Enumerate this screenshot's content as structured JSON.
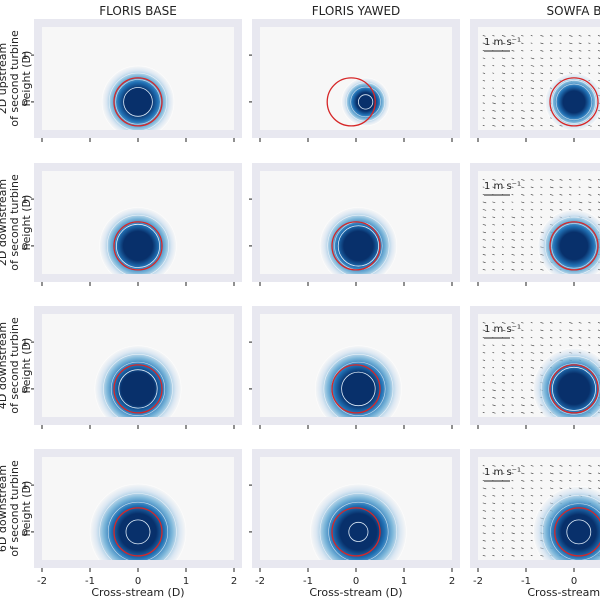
{
  "chart_data": {
    "type": "heatmap",
    "column_titles": [
      "FLORIS BASE",
      "FLORIS YAWED",
      "SOWFA B"
    ],
    "row_labels": [
      [
        "2D upstream",
        "of second turbine",
        "height (D)"
      ],
      [
        "2D downstream",
        "of second turbine",
        "height (D)"
      ],
      [
        "4D downstream",
        "of second turbine",
        "height (D)"
      ],
      [
        "6D downstream",
        "of second turbine",
        "height (D)"
      ]
    ],
    "xlabel": "Cross-stream (D)",
    "x_ticks": [
      "-2",
      "-1",
      "0",
      "1",
      "2"
    ],
    "y_ticks": [
      "0",
      "1"
    ],
    "xlim": [
      -2,
      2
    ],
    "ylim": [
      -0.6,
      1.6
    ],
    "quiver_key": "1 m s⁻¹",
    "colors": {
      "wake_core": "#08306b",
      "wake_edge": "#c6dbef",
      "rotor_outline": "#d62728",
      "panel_frame": "#e8e8f0",
      "panel_bg": "#f7f7f7"
    },
    "wake": {
      "base": [
        {
          "center_x": 0.0,
          "radius": 0.75,
          "core_radius": 0.3
        },
        {
          "center_x": 0.0,
          "radius": 0.8,
          "core_radius": 0.45
        },
        {
          "center_x": 0.0,
          "radius": 0.9,
          "core_radius": 0.4
        },
        {
          "center_x": 0.0,
          "radius": 1.0,
          "core_radius": 0.25
        }
      ],
      "yawed": [
        {
          "center_x": 0.2,
          "radius": 0.5,
          "core_radius": 0.15
        },
        {
          "center_x": 0.05,
          "radius": 0.8,
          "core_radius": 0.42
        },
        {
          "center_x": 0.05,
          "radius": 0.9,
          "core_radius": 0.35
        },
        {
          "center_x": 0.05,
          "radius": 1.0,
          "core_radius": 0.2
        }
      ],
      "sowfa": [
        {
          "center_x": 0.0,
          "radius": 0.6,
          "core_radius": 0.45
        },
        {
          "center_x": 0.0,
          "radius": 0.75,
          "core_radius": 0.5
        },
        {
          "center_x": 0.0,
          "radius": 0.85,
          "core_radius": 0.45
        },
        {
          "center_x": 0.1,
          "radius": 0.95,
          "core_radius": 0.25
        }
      ]
    },
    "rotor_circles": {
      "base": [
        0.0,
        0.0,
        0.0,
        0.0
      ],
      "yawed": [
        -0.1,
        0.0,
        0.0,
        0.0
      ],
      "rotor_radius": 0.5
    }
  }
}
